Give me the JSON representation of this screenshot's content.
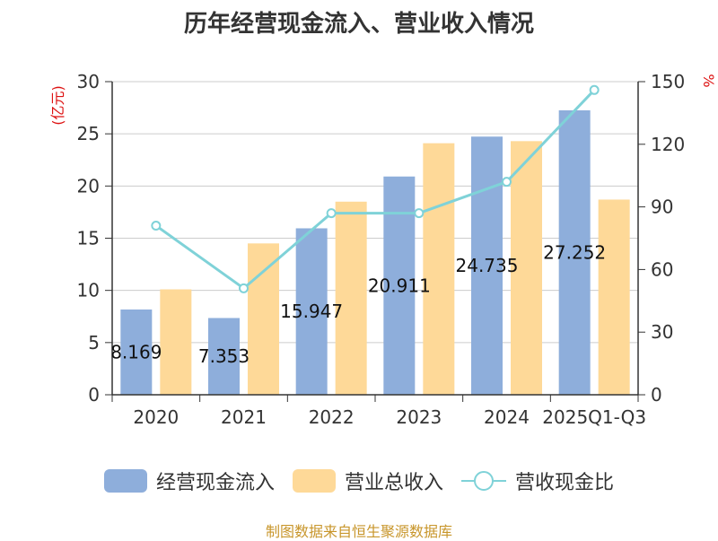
{
  "colors": {
    "cash_inflow": "#8eaedb",
    "revenue": "#fed998",
    "ratio": "#7fd2d8",
    "unit_label": "#dd1111",
    "source": "#c8962b",
    "axis": "#333333",
    "grid": "#cccccc"
  },
  "chart_data": {
    "type": "bar",
    "title": "历年经营现金流入、营业收入情况",
    "categories": [
      "2020",
      "2021",
      "2022",
      "2023",
      "2024",
      "2025Q1-Q3"
    ],
    "series": [
      {
        "name": "经营现金流入",
        "type": "bar",
        "axis": "left",
        "values": [
          8.169,
          7.353,
          15.947,
          20.911,
          24.735,
          27.252
        ],
        "labels": [
          "8.169",
          "7.353",
          "15.947",
          "20.911",
          "24.735",
          "27.252"
        ]
      },
      {
        "name": "营业总收入",
        "type": "bar",
        "axis": "left",
        "values": [
          10.1,
          14.5,
          18.5,
          24.1,
          24.3,
          18.7
        ]
      },
      {
        "name": "营收现金比",
        "type": "line",
        "axis": "right",
        "values": [
          81,
          51,
          87,
          87,
          102,
          146
        ]
      }
    ],
    "y_left": {
      "label": "(亿元)",
      "min": 0,
      "max": 30,
      "ticks": [
        "0",
        "5",
        "10",
        "15",
        "20",
        "25",
        "30"
      ]
    },
    "y_right": {
      "label": "%",
      "min": 0,
      "max": 150,
      "ticks": [
        "0",
        "30",
        "60",
        "90",
        "120",
        "150"
      ]
    },
    "grid": true,
    "legend_position": "bottom"
  },
  "source": "制图数据来自恒生聚源数据库"
}
